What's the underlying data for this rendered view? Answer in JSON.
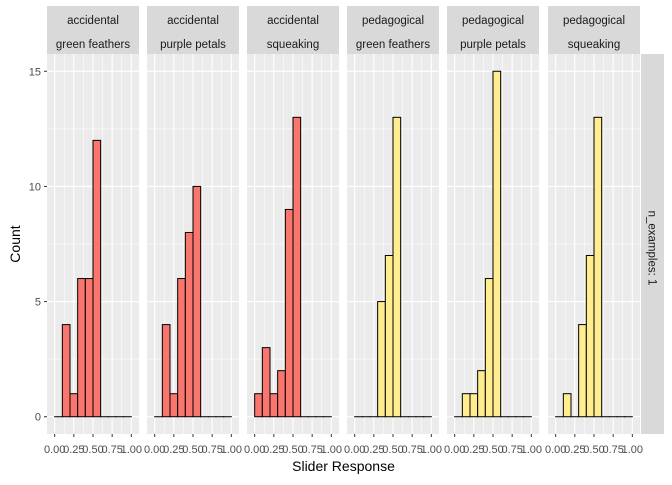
{
  "chart_data": {
    "type": "bar",
    "subtype": "faceted-histogram",
    "xlabel": "Slider Response",
    "ylabel": "Count",
    "row_strip": "n_examples: 1",
    "x_ticks": [
      "0.00",
      "0.25",
      "0.50",
      "0.75",
      "1.00"
    ],
    "y_ticks": [
      0,
      5,
      10,
      15
    ],
    "xlim": [
      -0.1,
      1.1
    ],
    "ylim": [
      -0.75,
      15.75
    ],
    "bin_width": 0.1,
    "bin_centers": [
      0.05,
      0.15,
      0.25,
      0.35,
      0.45,
      0.55,
      0.65,
      0.75,
      0.85,
      0.95
    ],
    "grid": true,
    "legend": "none",
    "colors": {
      "accidental": "#F8766D",
      "pedagogical": "#FFED8F",
      "bar_outline": "#000000",
      "panel_bg": "#EBEBEB",
      "strip_bg": "#D9D9D9",
      "grid": "#FFFFFF"
    },
    "facets": [
      {
        "strip": [
          "accidental",
          "green feathers"
        ],
        "group": "accidental",
        "values": [
          0,
          4,
          1,
          6,
          6,
          12,
          0,
          0,
          0,
          0
        ]
      },
      {
        "strip": [
          "accidental",
          "purple petals"
        ],
        "group": "accidental",
        "values": [
          0,
          4,
          1,
          6,
          8,
          10,
          0,
          0,
          0,
          0
        ]
      },
      {
        "strip": [
          "accidental",
          "squeaking"
        ],
        "group": "accidental",
        "values": [
          1,
          3,
          1,
          2,
          9,
          13,
          0,
          0,
          0,
          0
        ]
      },
      {
        "strip": [
          "pedagogical",
          "green feathers"
        ],
        "group": "pedagogical",
        "values": [
          0,
          0,
          0,
          5,
          7,
          13,
          0,
          0,
          0,
          0
        ]
      },
      {
        "strip": [
          "pedagogical",
          "purple petals"
        ],
        "group": "pedagogical",
        "values": [
          0,
          1,
          1,
          2,
          6,
          15,
          0,
          0,
          0,
          0
        ]
      },
      {
        "strip": [
          "pedagogical",
          "squeaking"
        ],
        "group": "pedagogical",
        "values": [
          0,
          1,
          0,
          4,
          7,
          13,
          0,
          0,
          0,
          0
        ]
      }
    ]
  }
}
